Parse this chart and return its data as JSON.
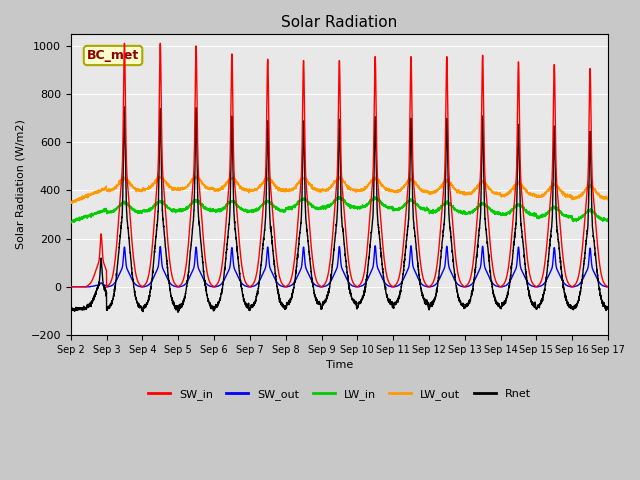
{
  "title": "Solar Radiation",
  "ylabel": "Solar Radiation (W/m2)",
  "xlabel": "Time",
  "ylim": [
    -200,
    1050
  ],
  "xlim_days": [
    2,
    17
  ],
  "fig_facecolor": "#c8c8c8",
  "ax_facecolor": "#e8e8e8",
  "annotation_text": "BC_met",
  "annotation_color": "#8B0000",
  "annotation_bg": "#ffffcc",
  "annotation_border": "#aaa800",
  "series": {
    "SW_in": {
      "color": "#ff0000",
      "lw": 1.0
    },
    "SW_out": {
      "color": "#0000ff",
      "lw": 1.0
    },
    "LW_in": {
      "color": "#00cc00",
      "lw": 1.0
    },
    "LW_out": {
      "color": "#ff9900",
      "lw": 1.0
    },
    "Rnet": {
      "color": "#000000",
      "lw": 1.0
    }
  },
  "tick_labels": [
    "Sep 2",
    "Sep 3",
    "Sep 4",
    "Sep 5",
    "Sep 6",
    "Sep 7",
    "Sep 8",
    "Sep 9",
    "Sep 10",
    "Sep 11",
    "Sep 12",
    "Sep 13",
    "Sep 14",
    "Sep 15",
    "Sep 16",
    "Sep 17"
  ],
  "tick_positions": [
    2,
    3,
    4,
    5,
    6,
    7,
    8,
    9,
    10,
    11,
    12,
    13,
    14,
    15,
    16,
    17
  ],
  "yticks": [
    -200,
    0,
    200,
    400,
    600,
    800,
    1000
  ]
}
